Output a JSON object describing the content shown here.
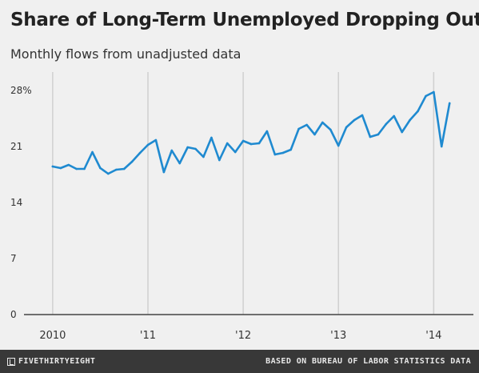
{
  "title": "Share of Long-Term Unemployed Dropping Out",
  "subtitle": "Monthly flows from unadjusted data",
  "footer": {
    "brand": "FIVETHIRTYEIGHT",
    "source": "BASED ON BUREAU OF LABOR STATISTICS DATA"
  },
  "colors": {
    "line": "#1f8ad0",
    "grid": "#d0d0d0",
    "baseline": "#444444",
    "background": "#f0f0f0",
    "footer_bg": "#383838"
  },
  "chart_data": {
    "type": "line",
    "title": "Share of Long-Term Unemployed Dropping Out",
    "subtitle": "Monthly flows from unadjusted data",
    "xlabel": "",
    "ylabel": "",
    "ylim": [
      0,
      28
    ],
    "yticks": [
      {
        "value": 28,
        "label": "28%"
      },
      {
        "value": 21,
        "label": "21"
      },
      {
        "value": 14,
        "label": "14"
      },
      {
        "value": 7,
        "label": "7"
      },
      {
        "value": 0,
        "label": "0"
      }
    ],
    "xticks": [
      {
        "value": 2010,
        "label": "2010"
      },
      {
        "value": 2011,
        "label": "'11"
      },
      {
        "value": 2012,
        "label": "'12"
      },
      {
        "value": 2013,
        "label": "'13"
      },
      {
        "value": 2014,
        "label": "'14"
      }
    ],
    "xlim": [
      2009.85,
      2014.4
    ],
    "grid": "vertical",
    "series": [
      {
        "x": [
          2010.0,
          2010.083,
          2010.167,
          2010.25,
          2010.333,
          2010.417,
          2010.5,
          2010.583,
          2010.667,
          2010.75,
          2010.833,
          2010.917,
          2011.0,
          2011.083,
          2011.167,
          2011.25,
          2011.333,
          2011.417,
          2011.5,
          2011.583,
          2011.667,
          2011.75,
          2011.833,
          2011.917,
          2012.0,
          2012.083,
          2012.167,
          2012.25,
          2012.333,
          2012.417,
          2012.5,
          2012.583,
          2012.667,
          2012.75,
          2012.833,
          2012.917,
          2013.0,
          2013.083,
          2013.167,
          2013.25,
          2013.333,
          2013.417,
          2013.5,
          2013.583,
          2013.667,
          2013.75,
          2013.833,
          2013.917,
          2014.0,
          2014.083,
          2014.167
        ],
        "values": [
          18.5,
          18.3,
          18.7,
          18.2,
          18.2,
          20.3,
          18.3,
          17.6,
          18.1,
          18.2,
          19.1,
          20.2,
          21.2,
          21.8,
          17.8,
          20.5,
          18.9,
          20.9,
          20.7,
          19.7,
          22.1,
          19.3,
          21.4,
          20.3,
          21.7,
          21.3,
          21.4,
          22.9,
          20.0,
          20.2,
          20.6,
          23.2,
          23.7,
          22.5,
          24.0,
          23.1,
          21.1,
          23.4,
          24.3,
          24.9,
          22.2,
          22.5,
          23.8,
          24.8,
          22.8,
          24.3,
          25.4,
          27.3,
          27.8,
          21.0,
          26.4
        ]
      }
    ]
  }
}
